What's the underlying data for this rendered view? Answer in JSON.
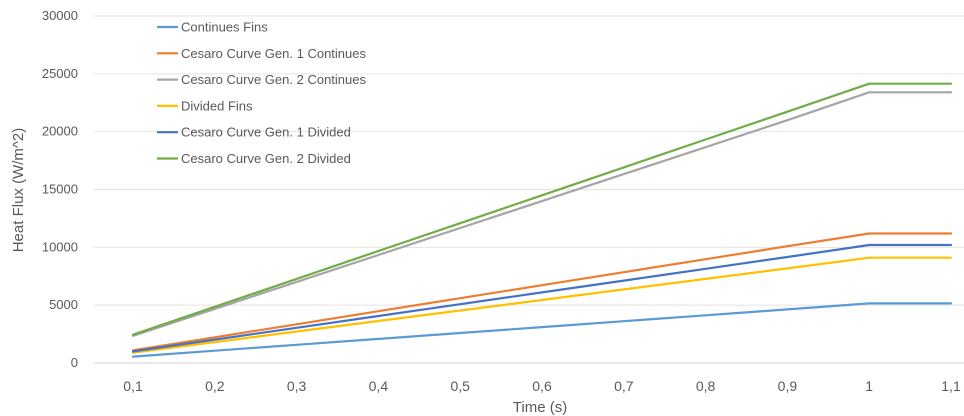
{
  "chart_data": {
    "type": "line",
    "title": "",
    "xlabel": "Time (s)",
    "ylabel": "Heat Flux (W/m^2)",
    "x": [
      "0,1",
      "0,2",
      "0,3",
      "0,4",
      "0,5",
      "0,6",
      "0,7",
      "0,8",
      "0,9",
      "1",
      "1,1"
    ],
    "ylim": [
      0,
      30000
    ],
    "yticks": [
      "0",
      "5000",
      "10000",
      "15000",
      "20000",
      "25000",
      "30000"
    ],
    "grid": "horizontal",
    "legend_position": "top-left",
    "series": [
      {
        "name": "Continues Fins",
        "color": "#5B9BD5",
        "values": [
          550,
          1060,
          1570,
          2080,
          2590,
          3100,
          3610,
          4120,
          4630,
          5150,
          5150
        ]
      },
      {
        "name": "Cesaro Curve Gen. 1 Continues",
        "color": "#ED7D31",
        "values": [
          1100,
          2225,
          3350,
          4475,
          5600,
          6725,
          7850,
          8975,
          10100,
          11200,
          11200
        ]
      },
      {
        "name": "Cesaro Curve Gen. 2 Continues",
        "color": "#A5A5A5",
        "values": [
          2350,
          4680,
          7010,
          9340,
          11670,
          14000,
          16330,
          18660,
          20990,
          23400,
          23400
        ]
      },
      {
        "name": "Divided Fins",
        "color": "#FFC000",
        "values": [
          900,
          1810,
          2720,
          3630,
          4540,
          5450,
          6360,
          7270,
          8180,
          9100,
          9100
        ]
      },
      {
        "name": "Cesaro Curve Gen. 1 Divided",
        "color": "#4472C4",
        "values": [
          1000,
          2020,
          3040,
          4060,
          5080,
          6100,
          7120,
          8140,
          9160,
          10200,
          10200
        ]
      },
      {
        "name": "Cesaro Curve Gen. 2 Divided",
        "color": "#70AD47",
        "values": [
          2450,
          4860,
          7270,
          9680,
          12090,
          14500,
          16910,
          19320,
          21730,
          24150,
          24150
        ]
      }
    ]
  }
}
